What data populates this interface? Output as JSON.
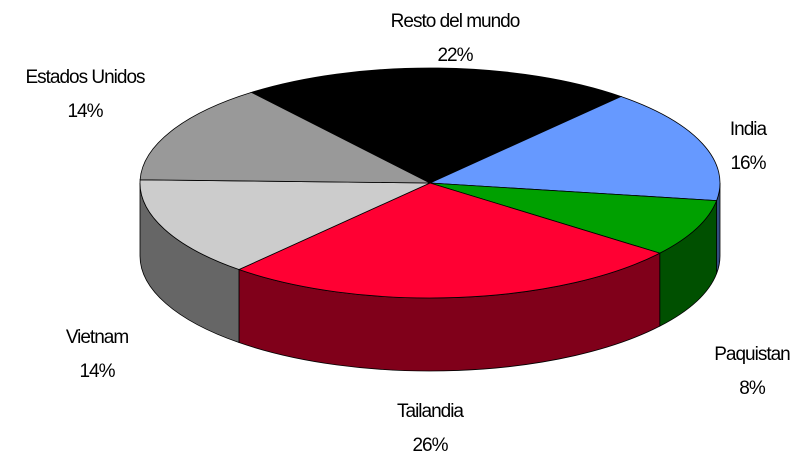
{
  "chart_data": {
    "type": "pie",
    "categories": [
      "Resto del mundo",
      "India",
      "Paquistan",
      "Tailandia",
      "Vietnam",
      "Estados Unidos"
    ],
    "values": [
      22,
      16,
      8,
      26,
      14,
      14
    ],
    "value_labels": [
      "22%",
      "16%",
      "8%",
      "26%",
      "14%",
      "14%"
    ],
    "colors": [
      "#000000",
      "#6699ff",
      "#00a000",
      "#ff0033",
      "#cccccc",
      "#999999"
    ]
  }
}
